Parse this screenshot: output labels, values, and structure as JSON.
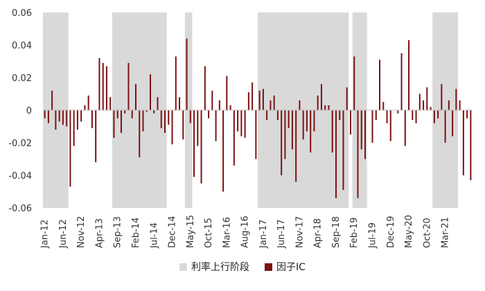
{
  "chart_data": {
    "type": "bar",
    "ylim": [
      -0.06,
      0.06
    ],
    "yticks": [
      "0.06",
      "0.04",
      "0.02",
      "0",
      "-0.02",
      "-0.04",
      "-0.06"
    ],
    "ytick_values": [
      0.06,
      0.04,
      0.02,
      0,
      -0.02,
      -0.04,
      -0.06
    ],
    "xlabel": "",
    "ylabel": "",
    "title": "",
    "start_month": "2012-01",
    "xtick_labels": [
      "Jan-12",
      "Jun-12",
      "Nov-12",
      "Apr-13",
      "Sep-13",
      "Feb-14",
      "Jul-14",
      "Dec-14",
      "May-15",
      "Oct-15",
      "Mar-16",
      "Aug-16",
      "Jan-17",
      "Jun-17",
      "Nov-17",
      "Apr-18",
      "Sep-18",
      "Feb-19",
      "Jul-19",
      "Dec-19",
      "May-20",
      "Oct-20",
      "Mar-21"
    ],
    "shaded_periods": [
      {
        "start": "2012-01",
        "end": "2012-07"
      },
      {
        "start": "2013-08",
        "end": "2014-10"
      },
      {
        "start": "2015-04",
        "end": "2015-05"
      },
      {
        "start": "2016-12",
        "end": "2018-12"
      },
      {
        "start": "2019-02",
        "end": "2019-05"
      },
      {
        "start": "2020-12",
        "end": "2021-06"
      }
    ],
    "series": [
      {
        "name": "因子IC",
        "color": "#7b1113",
        "values": [
          -0.005,
          -0.008,
          0.012,
          -0.012,
          -0.007,
          -0.009,
          -0.01,
          -0.047,
          -0.022,
          -0.012,
          -0.007,
          0.003,
          0.009,
          -0.011,
          -0.032,
          0.032,
          0.029,
          0.027,
          0.008,
          -0.017,
          -0.005,
          -0.014,
          -0.002,
          0.029,
          -0.005,
          0.016,
          -0.029,
          -0.013,
          -0.001,
          0.022,
          -0.002,
          0.008,
          -0.011,
          -0.014,
          -0.009,
          -0.021,
          0.033,
          0.008,
          -0.018,
          0.044,
          -0.008,
          -0.041,
          -0.022,
          -0.045,
          0.027,
          -0.005,
          0.012,
          -0.019,
          0.006,
          -0.05,
          0.021,
          0.003,
          -0.034,
          -0.013,
          -0.016,
          -0.017,
          0.011,
          0.017,
          -0.03,
          0.012,
          0.013,
          -0.006,
          0.006,
          0.009,
          -0.006,
          -0.04,
          -0.03,
          -0.011,
          -0.024,
          -0.044,
          0.006,
          -0.018,
          -0.013,
          -0.026,
          -0.013,
          0.009,
          0.016,
          0.003,
          0.003,
          -0.026,
          -0.054,
          -0.006,
          -0.049,
          0.014,
          -0.015,
          0.033,
          -0.054,
          -0.024,
          -0.03,
          0.0,
          -0.02,
          -0.006,
          0.031,
          0.005,
          -0.008,
          -0.019,
          0.0,
          -0.002,
          0.035,
          -0.022,
          0.043,
          -0.006,
          -0.008,
          0.01,
          0.006,
          0.014,
          0.002,
          -0.008,
          -0.005,
          0.016,
          -0.02,
          0.006,
          -0.016,
          0.013,
          0.006,
          -0.04,
          -0.005,
          -0.043
        ]
      }
    ],
    "legend": {
      "position": "bottom",
      "items": [
        {
          "label": "利率上行阶段",
          "color": "#d9d9d9"
        },
        {
          "label": "因子IC",
          "color": "#7b1113"
        }
      ]
    }
  }
}
